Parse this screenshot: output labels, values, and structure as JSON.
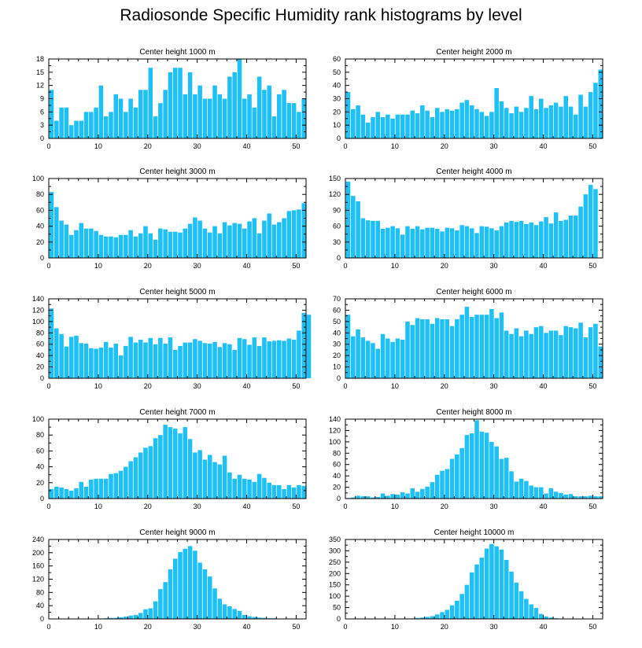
{
  "page": {
    "title": "Radiosonde Specific Humidity rank histograms by level"
  },
  "style": {
    "bar_color": "#1ec0f5",
    "axis_color": "#000000"
  },
  "chart_data": [
    {
      "type": "bar",
      "title": "Center height 1000 m",
      "xlim": [
        0,
        52
      ],
      "ylim": [
        0,
        18
      ],
      "xticks": [
        0,
        10,
        20,
        30,
        40,
        50
      ],
      "yticks": [
        0,
        3,
        6,
        9,
        12,
        15,
        18
      ],
      "values": [
        11,
        4,
        7,
        7,
        3,
        4,
        4,
        6,
        6,
        7,
        12,
        5,
        6,
        10,
        9,
        6,
        9,
        7,
        11,
        11,
        16,
        5,
        8,
        11,
        15,
        16,
        16,
        10,
        15,
        10,
        12,
        9,
        9,
        12,
        10,
        9,
        14,
        15,
        18,
        9,
        10,
        7,
        14,
        11,
        12,
        5,
        10,
        11,
        8,
        8,
        6,
        9
      ]
    },
    {
      "type": "bar",
      "title": "Center height 2000 m",
      "xlim": [
        0,
        52
      ],
      "ylim": [
        0,
        60
      ],
      "xticks": [
        0,
        10,
        20,
        30,
        40,
        50
      ],
      "yticks": [
        0,
        10,
        20,
        30,
        40,
        50,
        60
      ],
      "values": [
        35,
        22,
        25,
        18,
        12,
        16,
        20,
        16,
        18,
        15,
        18,
        18,
        18,
        21,
        19,
        25,
        21,
        16,
        23,
        20,
        22,
        21,
        22,
        27,
        29,
        25,
        22,
        20,
        17,
        20,
        38,
        28,
        23,
        19,
        24,
        20,
        23,
        32,
        22,
        30,
        23,
        25,
        27,
        24,
        32,
        24,
        18,
        33,
        24,
        35,
        42,
        52
      ]
    },
    {
      "type": "bar",
      "title": "Center height 3000 m",
      "xlim": [
        0,
        52
      ],
      "ylim": [
        0,
        100
      ],
      "xticks": [
        0,
        10,
        20,
        30,
        40,
        50
      ],
      "yticks": [
        0,
        20,
        40,
        60,
        80,
        100
      ],
      "values": [
        83,
        64,
        47,
        42,
        29,
        35,
        44,
        37,
        37,
        34,
        29,
        27,
        27,
        26,
        29,
        29,
        35,
        27,
        31,
        40,
        31,
        23,
        37,
        36,
        33,
        33,
        32,
        37,
        43,
        51,
        47,
        37,
        32,
        40,
        31,
        45,
        41,
        44,
        43,
        37,
        46,
        50,
        31,
        47,
        56,
        42,
        45,
        50,
        59,
        60,
        61,
        69
      ]
    },
    {
      "type": "bar",
      "title": "Center height 4000 m",
      "xlim": [
        0,
        52
      ],
      "ylim": [
        0,
        150
      ],
      "xticks": [
        0,
        10,
        20,
        30,
        40,
        50
      ],
      "yticks": [
        0,
        30,
        60,
        90,
        120,
        150
      ],
      "values": [
        144,
        117,
        107,
        75,
        71,
        70,
        70,
        55,
        57,
        60,
        56,
        44,
        60,
        55,
        60,
        54,
        57,
        57,
        55,
        50,
        57,
        56,
        52,
        62,
        60,
        56,
        47,
        60,
        59,
        56,
        52,
        60,
        67,
        70,
        68,
        70,
        64,
        67,
        62,
        69,
        77,
        65,
        86,
        70,
        72,
        80,
        80,
        97,
        120,
        138,
        130
      ]
    },
    {
      "type": "bar",
      "title": "Center height 5000 m",
      "xlim": [
        0,
        52
      ],
      "ylim": [
        0,
        140
      ],
      "xticks": [
        0,
        10,
        20,
        30,
        40,
        50
      ],
      "yticks": [
        0,
        20,
        40,
        60,
        80,
        100,
        120,
        140
      ],
      "values": [
        123,
        88,
        78,
        56,
        73,
        75,
        62,
        61,
        53,
        52,
        54,
        64,
        54,
        61,
        40,
        57,
        73,
        63,
        68,
        63,
        71,
        60,
        71,
        61,
        72,
        50,
        57,
        63,
        63,
        69,
        66,
        62,
        61,
        64,
        55,
        62,
        60,
        50,
        71,
        69,
        59,
        72,
        57,
        72,
        65,
        66,
        67,
        66,
        70,
        68,
        84,
        115,
        112
      ]
    },
    {
      "type": "bar",
      "title": "Center height 6000 m",
      "xlim": [
        0,
        52
      ],
      "ylim": [
        0,
        70
      ],
      "xticks": [
        0,
        10,
        20,
        30,
        40,
        50
      ],
      "yticks": [
        0,
        10,
        20,
        30,
        40,
        50,
        60,
        70
      ],
      "values": [
        56,
        37,
        43,
        36,
        33,
        31,
        26,
        39,
        35,
        32,
        35,
        34,
        50,
        47,
        53,
        52,
        52,
        48,
        53,
        52,
        52,
        46,
        52,
        56,
        63,
        54,
        56,
        56,
        56,
        61,
        53,
        58,
        42,
        39,
        44,
        37,
        42,
        39,
        45,
        46,
        40,
        42,
        42,
        38,
        46,
        45,
        44,
        49,
        36,
        45,
        48,
        28
      ]
    },
    {
      "type": "bar",
      "title": "Center height 7000 m",
      "xlim": [
        0,
        52
      ],
      "ylim": [
        0,
        100
      ],
      "xticks": [
        0,
        10,
        20,
        30,
        40,
        50
      ],
      "yticks": [
        0,
        20,
        40,
        60,
        80,
        100
      ],
      "values": [
        12,
        15,
        14,
        12,
        10,
        13,
        21,
        15,
        24,
        25,
        25,
        25,
        31,
        32,
        35,
        40,
        47,
        52,
        58,
        64,
        66,
        76,
        80,
        93,
        90,
        88,
        82,
        90,
        75,
        58,
        61,
        49,
        55,
        46,
        43,
        54,
        33,
        25,
        30,
        25,
        24,
        21,
        31,
        26,
        20,
        17,
        17,
        12,
        17,
        14,
        17,
        16
      ]
    },
    {
      "type": "bar",
      "title": "Center height 8000 m",
      "xlim": [
        0,
        52
      ],
      "ylim": [
        0,
        140
      ],
      "xticks": [
        0,
        10,
        20,
        30,
        40,
        50
      ],
      "yticks": [
        0,
        20,
        40,
        60,
        80,
        100,
        120,
        140
      ],
      "values": [
        1,
        2,
        5,
        4,
        4,
        2,
        3,
        9,
        5,
        8,
        7,
        11,
        9,
        18,
        12,
        17,
        21,
        29,
        42,
        49,
        52,
        70,
        78,
        89,
        112,
        115,
        138,
        118,
        116,
        100,
        92,
        70,
        72,
        48,
        30,
        35,
        31,
        23,
        20,
        20,
        9,
        18,
        12,
        10,
        7,
        8,
        4,
        4,
        4,
        5,
        4,
        4
      ]
    },
    {
      "type": "bar",
      "title": "Center height 9000 m",
      "xlim": [
        0,
        52
      ],
      "ylim": [
        0,
        240
      ],
      "xticks": [
        0,
        10,
        20,
        30,
        40,
        50
      ],
      "yticks": [
        0,
        40,
        80,
        120,
        160,
        200,
        240
      ],
      "values": [
        0,
        0,
        0,
        0,
        0,
        0,
        0,
        0,
        0,
        1,
        1,
        2,
        3,
        3,
        5,
        7,
        10,
        12,
        18,
        29,
        32,
        53,
        90,
        111,
        150,
        182,
        202,
        212,
        220,
        206,
        170,
        150,
        128,
        92,
        61,
        44,
        38,
        30,
        24,
        12,
        8,
        6,
        4,
        3,
        2,
        2,
        1,
        1,
        1,
        0,
        1,
        1
      ]
    },
    {
      "type": "bar",
      "title": "Center height 10000 m",
      "xlim": [
        0,
        52
      ],
      "ylim": [
        0,
        350
      ],
      "xticks": [
        0,
        10,
        20,
        30,
        40,
        50
      ],
      "yticks": [
        0,
        50,
        100,
        150,
        200,
        250,
        300,
        350
      ],
      "values": [
        0,
        0,
        0,
        0,
        0,
        0,
        0,
        0,
        0,
        0,
        0,
        0,
        1,
        2,
        4,
        6,
        9,
        12,
        20,
        30,
        40,
        60,
        80,
        110,
        150,
        205,
        240,
        270,
        310,
        330,
        320,
        305,
        260,
        208,
        160,
        122,
        88,
        64,
        48,
        22,
        11,
        6,
        3,
        1,
        1,
        0,
        0,
        0,
        0,
        0,
        0,
        0
      ]
    }
  ]
}
